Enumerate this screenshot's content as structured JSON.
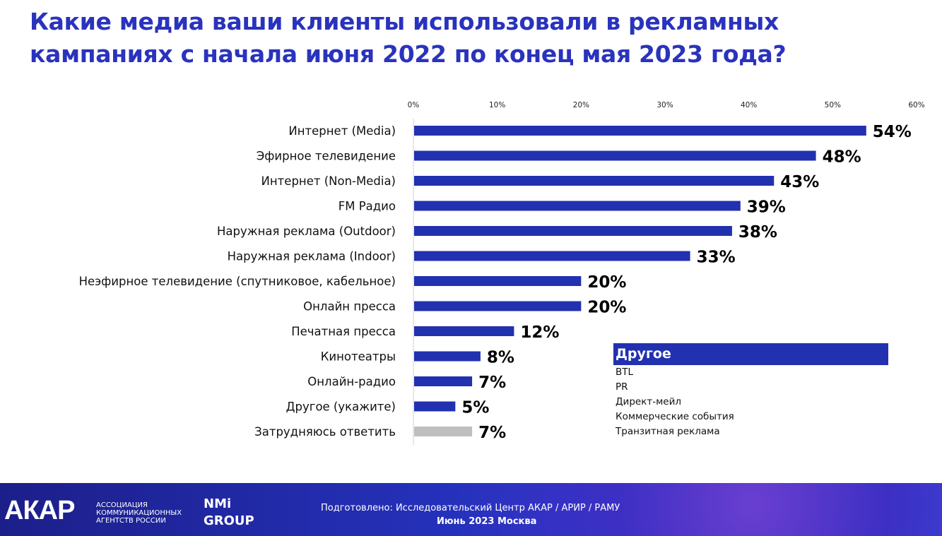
{
  "title": "Какие медиа ваши клиенты использовали в рекламных кампаниях с начала июня 2022 по конец мая 2023 года?",
  "chart_data": {
    "type": "bar",
    "orientation": "horizontal",
    "title": "Какие медиа ваши клиенты использовали в рекламных кампаниях с начала июня 2022 по конец мая 2023 года?",
    "categories": [
      "Интернет (Media)",
      "Эфирное телевидение",
      "Интернет (Non-Media)",
      "FM Радио",
      "Наружная реклама (Outdoor)",
      "Наружная реклама (Indoor)",
      "Неэфирное  телевидение (спутниковое, кабельное)",
      "Онлайн пресса",
      "Печатная пресса",
      "Кинотеатры",
      "Онлайн-радио",
      "Другое (укажите)",
      "Затрудняюсь ответить"
    ],
    "values": [
      54,
      48,
      43,
      39,
      38,
      33,
      20,
      20,
      12,
      8,
      7,
      5,
      7
    ],
    "data_labels": [
      "54%",
      "48%",
      "43%",
      "39%",
      "38%",
      "33%",
      "20%",
      "20%",
      "12%",
      "8%",
      "7%",
      "5%",
      "7%"
    ],
    "xlim": [
      0,
      60
    ],
    "x_ticks": [
      "0%",
      "10%",
      "20%",
      "30%",
      "40%",
      "50%",
      "60%"
    ],
    "x_tick_values": [
      0,
      10,
      20,
      30,
      40,
      50,
      60
    ],
    "axis_position": "top",
    "grid": false,
    "colors": {
      "bar": "#2231b0",
      "bar_undecided": "#bfbfbf"
    }
  },
  "other_box": {
    "heading": "Другое",
    "items": [
      "BTL",
      "PR",
      "Директ-мейл",
      "Коммерческие события",
      "Транзитная реклама"
    ]
  },
  "footer": {
    "logo": "АКАР",
    "logo_sub": [
      "АССОЦИАЦИЯ",
      "КОММУНИКАЦИОННЫХ",
      "АГЕНТСТВ РОССИИ"
    ],
    "partner_logo": [
      "NMi",
      "GROUP"
    ],
    "prepared": "Подготовлено: Исследовательский Центр АКАР / АРИР / РАМУ",
    "date": "Июнь 2023 Москва"
  }
}
